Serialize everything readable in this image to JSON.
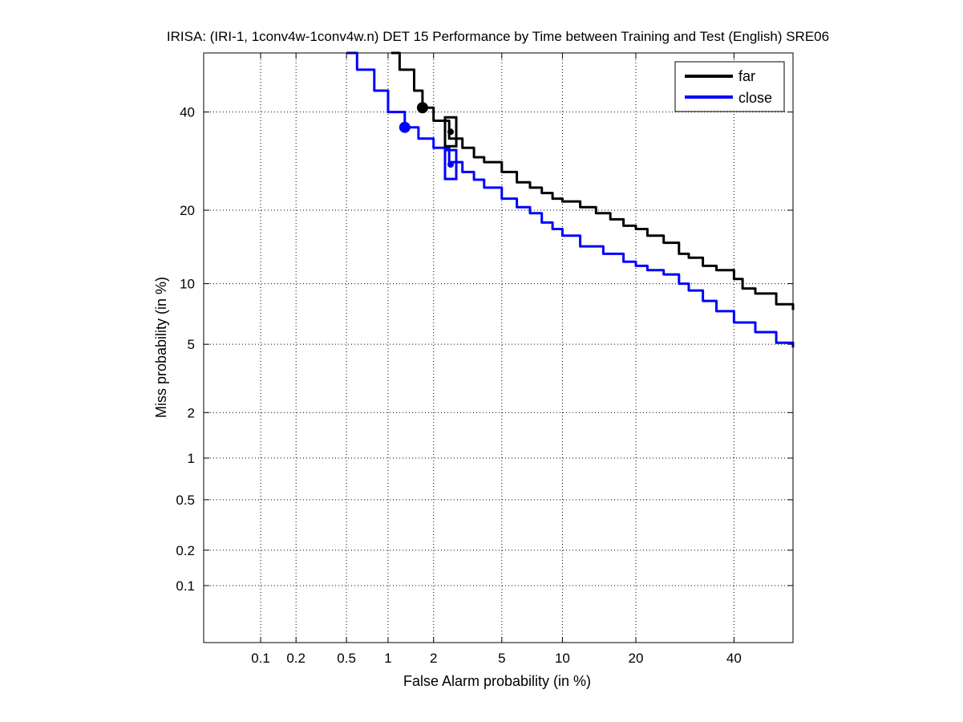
{
  "chart_data": {
    "type": "line",
    "title": "IRISA: (IRI-1, 1conv4w-1conv4w.n) DET 15 Performance by Time between Training and Test (English) SRE06",
    "xlabel": "False Alarm probability (in %)",
    "ylabel": "Miss probability (in %)",
    "x_scale": "probit",
    "y_scale": "probit",
    "xlim": [
      0.03,
      54
    ],
    "ylim": [
      0.03,
      54
    ],
    "x_ticks": [
      0.1,
      0.2,
      0.5,
      1,
      2,
      5,
      10,
      20,
      40
    ],
    "x_tick_labels": [
      "0.1",
      "0.2",
      "0.5",
      "1",
      "2",
      "5",
      "10",
      "20",
      "40"
    ],
    "y_ticks": [
      0.1,
      0.2,
      0.5,
      1,
      2,
      5,
      10,
      20,
      40
    ],
    "y_tick_labels": [
      "0.1",
      "0.2",
      "0.5",
      "1",
      "2",
      "5",
      "10",
      "20",
      "40"
    ],
    "grid": true,
    "legend_position": "top-right",
    "series": [
      {
        "name": "far",
        "color": "#000000",
        "x": [
          1.05,
          1.2,
          1.5,
          1.7,
          2.0,
          2.5,
          3.0,
          3.5,
          4.0,
          5.0,
          6.0,
          7.0,
          8.0,
          9.0,
          10.0,
          12.0,
          14.0,
          16.0,
          18.0,
          20.0,
          22.0,
          25.0,
          28.0,
          30.0,
          33.0,
          36.0,
          40.0,
          42.0,
          45.0,
          50.0,
          54.0
        ],
        "y": [
          54.0,
          50.0,
          45.0,
          41.0,
          38.0,
          34.0,
          32.0,
          30.0,
          29.0,
          27.0,
          25.0,
          24.0,
          23.0,
          22.0,
          21.5,
          20.5,
          19.5,
          18.5,
          17.5,
          17.0,
          16.0,
          15.0,
          13.5,
          13.0,
          12.0,
          11.5,
          10.5,
          9.5,
          9.0,
          8.0,
          7.5
        ],
        "actual_point": {
          "x": 1.7,
          "y": 41.0,
          "marker": "circle"
        },
        "min_point": {
          "x": 2.55,
          "y": 35.5,
          "marker": "square"
        }
      },
      {
        "name": "close",
        "color": "#0000ff",
        "x": [
          0.5,
          0.6,
          0.8,
          1.0,
          1.3,
          1.6,
          2.0,
          2.5,
          3.0,
          3.5,
          4.0,
          5.0,
          6.0,
          7.0,
          8.0,
          9.0,
          10.0,
          12.0,
          15.0,
          18.0,
          20.0,
          22.0,
          25.0,
          28.0,
          30.0,
          33.0,
          36.0,
          40.0,
          45.0,
          50.0,
          54.0
        ],
        "y": [
          54.0,
          50.0,
          45.0,
          40.0,
          36.5,
          34.0,
          32.0,
          29.0,
          27.0,
          25.5,
          24.0,
          22.0,
          20.5,
          19.5,
          18.0,
          17.0,
          16.0,
          14.5,
          13.5,
          12.5,
          12.0,
          11.5,
          11.0,
          10.0,
          9.3,
          8.3,
          7.4,
          6.5,
          5.8,
          5.1,
          4.8
        ],
        "actual_point": {
          "x": 1.3,
          "y": 36.5,
          "marker": "circle"
        },
        "min_point": {
          "x": 2.55,
          "y": 28.5,
          "marker": "square"
        }
      }
    ]
  }
}
